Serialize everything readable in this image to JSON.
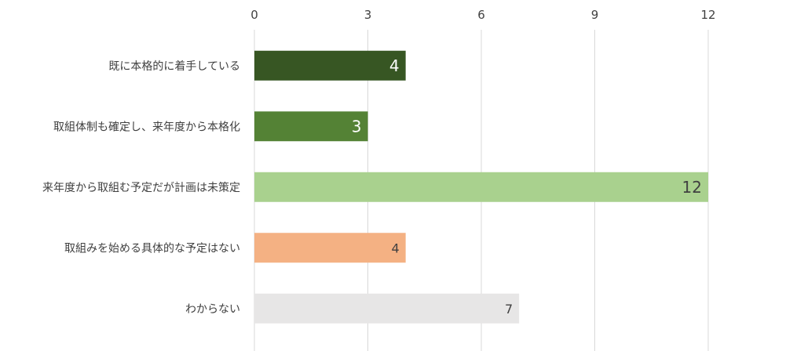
{
  "chart_data": {
    "type": "bar",
    "orientation": "horizontal",
    "categories": [
      "既に本格的に着手している",
      "取組体制も確定し、来年度から本格化",
      "来年度から取組む予定だが計画は未策定",
      "取組みを始める具体的な予定はない",
      "わからない"
    ],
    "values": [
      4,
      3,
      12,
      4,
      7
    ],
    "bar_colors": [
      "#375623",
      "#548235",
      "#A9D18E",
      "#F4B183",
      "#E7E6E6"
    ],
    "label_colors": [
      "#FFFFFF",
      "#FFFFFF",
      "#404040",
      "#404040",
      "#404040"
    ],
    "label_sizes": [
      "large",
      "large",
      "large",
      "small",
      "small"
    ],
    "xlim": [
      0,
      12
    ],
    "xticks": [
      "0",
      "3",
      "6",
      "9",
      "12"
    ],
    "axis_position": "top",
    "grid": true,
    "legend": "none",
    "title": "",
    "xlabel": "",
    "ylabel": ""
  }
}
